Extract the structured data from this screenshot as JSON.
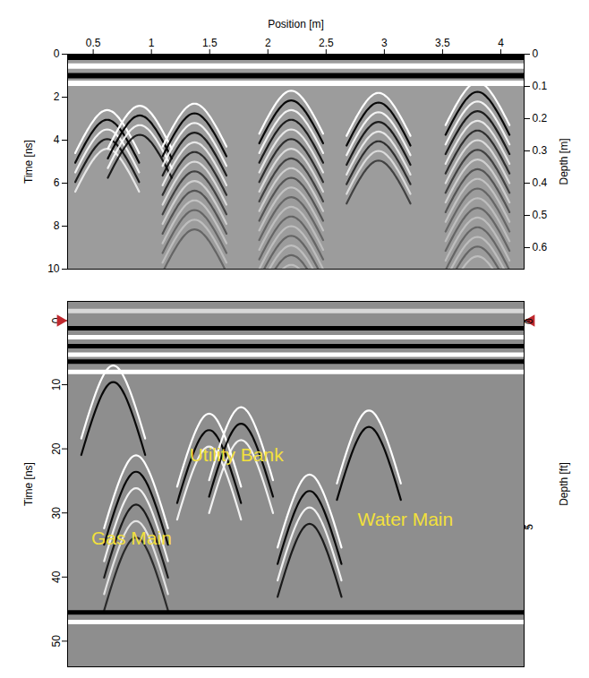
{
  "chart_data": [
    {
      "type": "radargram",
      "xlabel": "Position [m]",
      "ylabel": "Time [ns]",
      "y2label": "Depth [m]",
      "xlim": [
        0.28,
        4.2
      ],
      "xticks": [
        0.5,
        1,
        1.5,
        2,
        2.5,
        3,
        3.5,
        4
      ],
      "ylim": [
        0,
        10
      ],
      "yticks": [
        0,
        2,
        4,
        6,
        8,
        10
      ],
      "y2lim": [
        0,
        0.6667
      ],
      "y2ticks": [
        0,
        0.1,
        0.2,
        0.3,
        0.4,
        0.5,
        0.6
      ],
      "color": "#9c9c9c",
      "bands": [
        {
          "time": 0.15,
          "color": "black"
        },
        {
          "time": 0.55,
          "color": "white"
        },
        {
          "time": 1.0,
          "color": "black"
        },
        {
          "time": 1.35,
          "color": "white"
        }
      ],
      "reflections": [
        {
          "position": 0.62,
          "time": 2.6,
          "end_time": 4.5
        },
        {
          "position": 0.9,
          "time": 2.4,
          "end_time": 4.0
        },
        {
          "position": 1.37,
          "time": 2.3,
          "end_time": 8.5
        },
        {
          "position": 2.2,
          "time": 1.7,
          "end_time": 9.8
        },
        {
          "position": 2.95,
          "time": 1.8,
          "end_time": 5.0
        },
        {
          "position": 3.8,
          "time": 1.3,
          "end_time": 9.8
        }
      ]
    },
    {
      "type": "radargram",
      "ylabel": "Time [ns]",
      "y2label": "Depth [ft]",
      "xlim": [
        0,
        1
      ],
      "ylim": [
        -3,
        54
      ],
      "yticks": [
        0,
        10,
        20,
        30,
        40,
        50
      ],
      "y2lim": [
        -0.48,
        8.4
      ],
      "y2ticks": [
        0,
        5
      ],
      "tick_labels": "y",
      "marker": "triangle",
      "color": "#8e8e8e",
      "bands": [
        {
          "time": -1.5,
          "color": "#d8d8d8"
        },
        {
          "time": 1.2,
          "color": "black"
        },
        {
          "time": 2.6,
          "color": "white"
        },
        {
          "time": 4.0,
          "color": "black"
        },
        {
          "time": 5.3,
          "color": "white"
        },
        {
          "time": 6.4,
          "color": "black"
        },
        {
          "time": 8.0,
          "color": "white"
        },
        {
          "time": 45.5,
          "color": "black"
        },
        {
          "time": 47.0,
          "color": "white"
        }
      ],
      "reflections": [
        {
          "position": 0.1,
          "time": 7,
          "end_time": 11
        },
        {
          "position": 0.15,
          "time": 21,
          "end_time": 34
        },
        {
          "position": 0.31,
          "time": 14.5,
          "end_time": 20
        },
        {
          "position": 0.38,
          "time": 13.5,
          "end_time": 20
        },
        {
          "position": 0.53,
          "time": 24,
          "end_time": 32
        },
        {
          "position": 0.66,
          "time": 14,
          "end_time": 18
        }
      ],
      "annotations": [
        {
          "text": "Gas Main",
          "x": 0.14,
          "time": 34,
          "color": "#f2e03c"
        },
        {
          "text": "Utility Bank",
          "x": 0.37,
          "time": 21,
          "color": "#f2e03c"
        },
        {
          "text": "Water Main",
          "x": 0.74,
          "time": 31,
          "color": "#f2e03c"
        }
      ]
    }
  ]
}
